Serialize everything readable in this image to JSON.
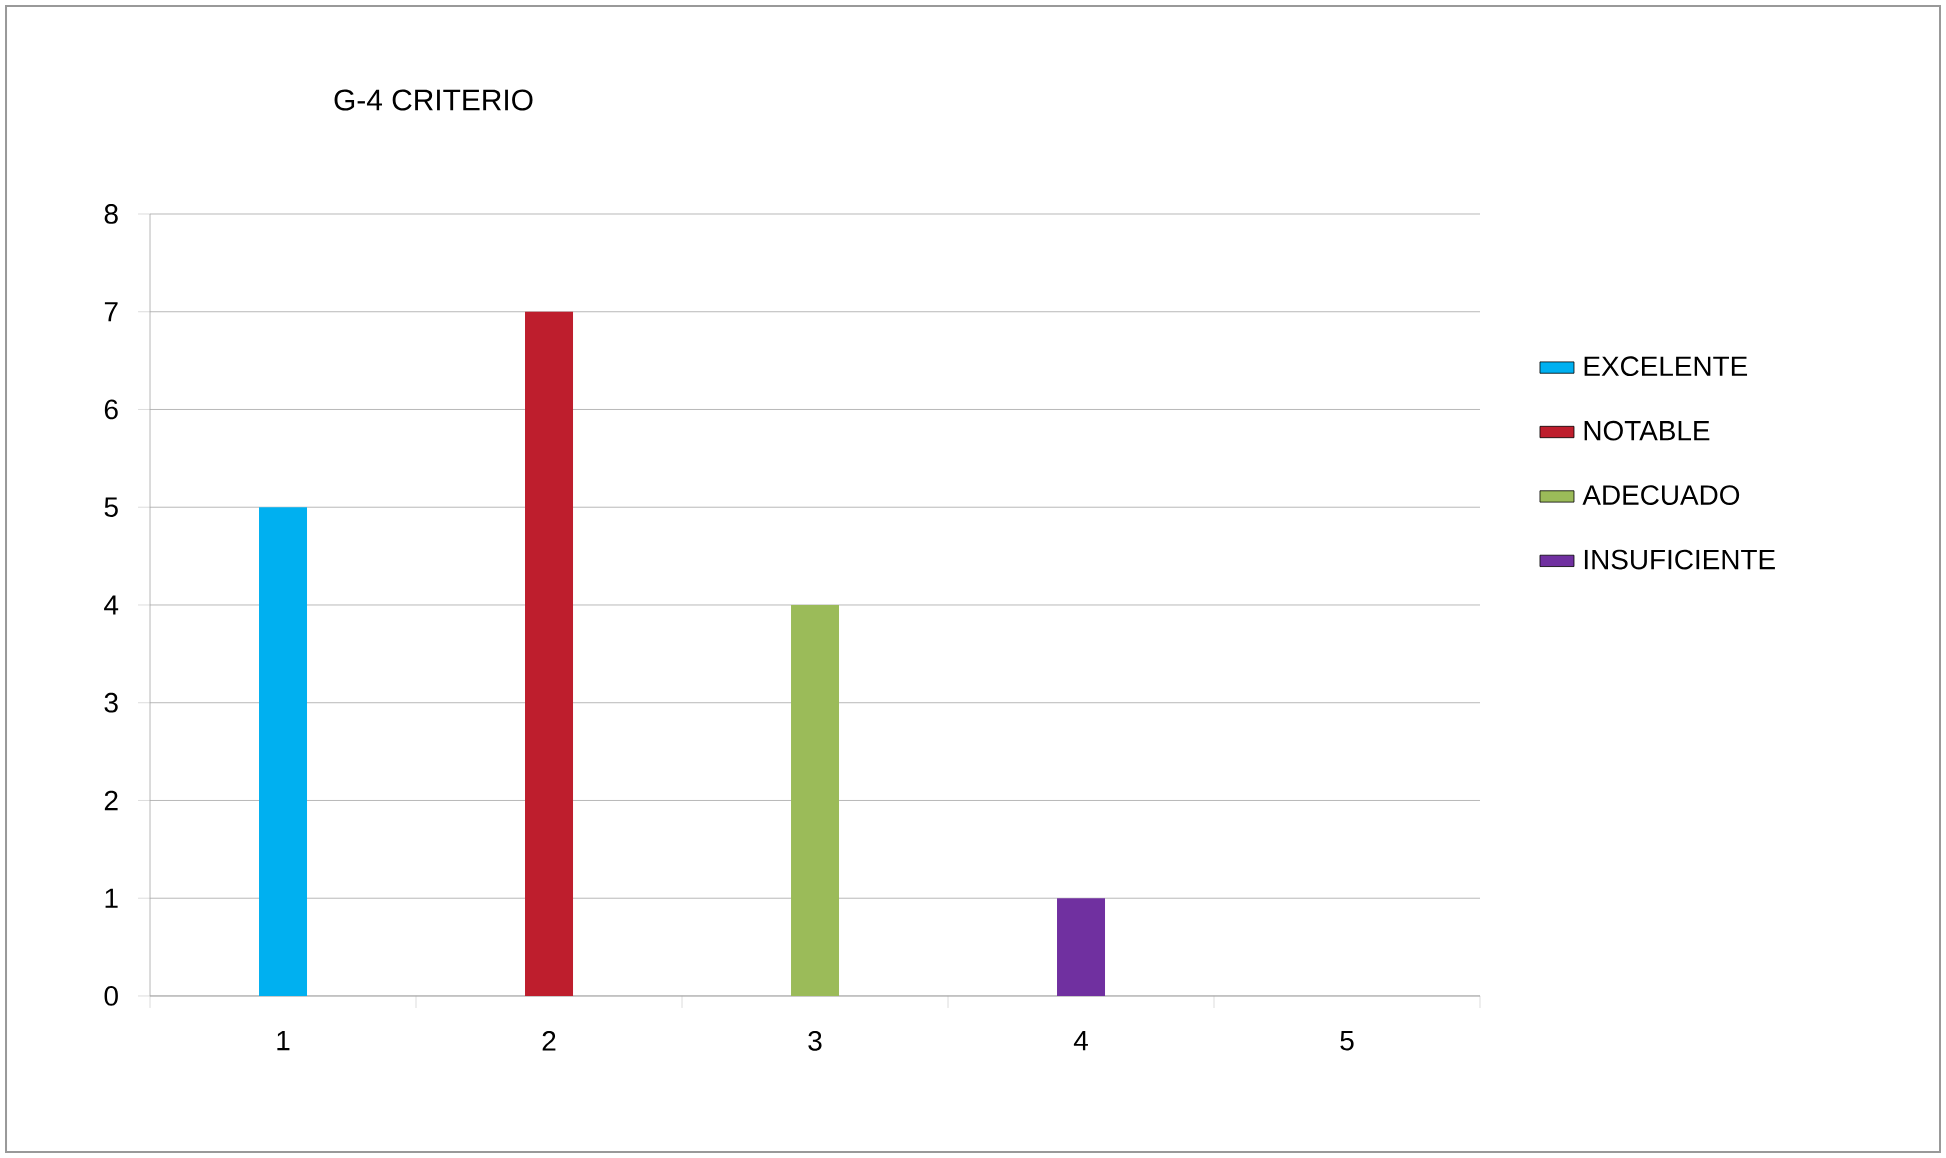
{
  "chart_data": {
    "type": "bar",
    "title": "G-4  CRITERIO",
    "categories": [
      "1",
      "2",
      "3",
      "4",
      "5"
    ],
    "series": [
      {
        "name": "EXCELENTE",
        "color": "#00b0f0",
        "values": [
          5,
          null,
          null,
          null,
          null
        ]
      },
      {
        "name": "NOTABLE",
        "color": "#be1e2d",
        "values": [
          null,
          7,
          null,
          null,
          null
        ]
      },
      {
        "name": "ADECUADO",
        "color": "#9bbb59",
        "values": [
          null,
          null,
          4,
          null,
          null
        ]
      },
      {
        "name": "INSUFICIENTE",
        "color": "#7030a0",
        "values": [
          null,
          null,
          null,
          1,
          null
        ]
      }
    ],
    "ylim": [
      0,
      8
    ],
    "yticks": [
      0,
      1,
      2,
      3,
      4,
      5,
      6,
      7,
      8
    ],
    "grid": "y",
    "legend": "right"
  }
}
